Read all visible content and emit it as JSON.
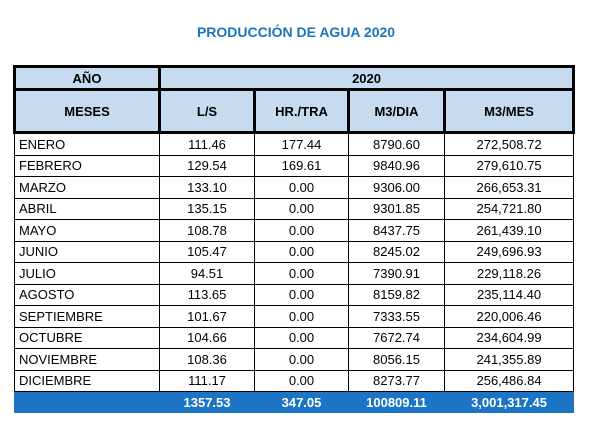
{
  "title": "PRODUCCIÓN DE AGUA 2020",
  "table": {
    "year_label": "AÑO",
    "year": "2020",
    "columns": [
      "MESES",
      "L/S",
      "HR./TRA",
      "M3/DIA",
      "M3/MES"
    ],
    "rows": [
      [
        "ENERO",
        "111.46",
        "177.44",
        "8790.60",
        "272,508.72"
      ],
      [
        "FEBRERO",
        "129.54",
        "169.61",
        "9840.96",
        "279,610.75"
      ],
      [
        "MARZO",
        "133.10",
        "0.00",
        "9306.00",
        "266,653.31"
      ],
      [
        "ABRIL",
        "135.15",
        "0.00",
        "9301.85",
        "254,721.80"
      ],
      [
        "MAYO",
        "108.78",
        "0.00",
        "8437.75",
        "261,439.10"
      ],
      [
        "JUNIO",
        "105.47",
        "0.00",
        "8245.02",
        "249,696.93"
      ],
      [
        "JULIO",
        "94.51",
        "0.00",
        "7390.91",
        "229,118.26"
      ],
      [
        "AGOSTO",
        "113.65",
        "0.00",
        "8159.82",
        "235,114.40"
      ],
      [
        "SEPTIEMBRE",
        "101.67",
        "0.00",
        "7333.55",
        "220,006.46"
      ],
      [
        "OCTUBRE",
        "104.66",
        "0.00",
        "7672.74",
        "234,604.99"
      ],
      [
        "NOVIEMBRE",
        "108.36",
        "0.00",
        "8056.15",
        "241,355.89"
      ],
      [
        "DICIEMBRE",
        "111.17",
        "0.00",
        "8273.77",
        "256,486.84"
      ]
    ],
    "totals": [
      "1357.53",
      "347.05",
      "100809.11",
      "3,001,317.45"
    ]
  }
}
